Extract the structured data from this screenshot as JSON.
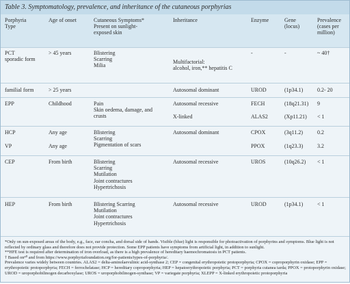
{
  "title": "Table 3. Symptomatology, prevalence, and inheritance of the cutaneous porphyrias",
  "table": {
    "header": [
      [
        "Porphyria",
        "Type"
      ],
      [
        "Age of onset"
      ],
      [
        "Cutaneous Symptoms*",
        "Present on sunlight-",
        "exposed skin"
      ],
      [
        "Inheritance"
      ],
      [
        "Enzyme"
      ],
      [
        "Gene",
        "(locus)"
      ],
      [
        "Prevalence",
        "(cases per",
        "million)"
      ]
    ],
    "rows": [
      [
        [
          "PCT",
          "sporadic form"
        ],
        [
          "> 45 years"
        ],
        [
          "Blistering",
          "Scarring",
          "Milia"
        ],
        [
          "Multifactorial:",
          "alcohol, iron,** hepatitis C"
        ],
        [
          "-"
        ],
        [
          "-"
        ],
        [
          "~ 40†"
        ]
      ],
      [
        [
          "familial form"
        ],
        [
          "> 25 years"
        ],
        [],
        [
          "Autosomal dominant"
        ],
        [
          "UROD"
        ],
        [
          "(1p34.1)"
        ],
        [
          "0.2- 20"
        ]
      ],
      [
        [
          "EPP"
        ],
        [
          "Childhood"
        ],
        [
          "Pain",
          "Skin oedema, damage, and",
          "crusts"
        ],
        [
          "Autosomal recessive",
          "X-linked"
        ],
        [
          "FECH",
          "ALAS2"
        ],
        [
          "(18q21.31)",
          "(Xp11.21)"
        ],
        [
          "9",
          "< 1"
        ]
      ],
      [
        [
          "HCP",
          "VP"
        ],
        [
          "Any age",
          "Any age"
        ],
        [
          "Blistering",
          "Scarring",
          "Pigmentation of scars"
        ],
        [
          "Autosomal dominant"
        ],
        [
          "CPOX",
          "PPOX"
        ],
        [
          "(3q11.2)",
          "(1q23.3)"
        ],
        [
          "0.2",
          "3.2"
        ]
      ],
      [
        [
          "CEP"
        ],
        [
          "From birth"
        ],
        [
          "Blistering",
          "Scarring",
          "Mutilation",
          "Joint contractures",
          "Hypertrichosis"
        ],
        [
          "Autosomal recessive"
        ],
        [
          "UROS"
        ],
        [
          "(10q26.2)"
        ],
        [
          "< 1"
        ]
      ],
      [
        [
          "HEP"
        ],
        [
          "From birth"
        ],
        [
          "Blistering Scarring",
          "Mutilation",
          "Joint contractures",
          "Hypertrichosis"
        ],
        [
          "Autosomal recessive"
        ],
        [
          "UROD"
        ],
        [
          "(1p34.1)"
        ],
        [
          "< 1"
        ]
      ]
    ]
  },
  "footnotes": [
    "*Only on sun-exposed areas of the body, e.g., face, ear concha, and dorsal side of hands. Visible (blue) light is responsible for photoactivation of porphyrins and symptoms. Blue light is not reflected by ordinary glass and therefore does not provide protection. Some EPP patients have symptoms from artificial light, in addition to sunlight.",
    "**HFE test is required after determination of iron overload, as there is a high prevalence of hereditary haemochromatosis in PCT patients.",
    "† Based on⁴⁰ and from https://www.porphyriafoundation.org/for-patients/types-of-porphyria/.",
    "Prevalence varies widely between countries. ALAS2 = delta-aminolaevulinic acid-synthase 2; CEP = congenital erythropoietic protoporphyria; CPOX = coproporphyrin oxidase; EPP = erythropoietic protoporphyria; FECH = ferrochelatase; HCP = hereditary coproporphyria; HEP = hepatoerythropoietic porphyria; PCT = porphyria cutanea tarda; PPOX = protoporphyrin oxidase; UROD = uroporphobilinogen decarboxylase; UROS = uroporphobilinogen-synthase; VP = variegate porphyria; XLEPP = X-linked erythropoietic protoporphyria"
  ]
}
